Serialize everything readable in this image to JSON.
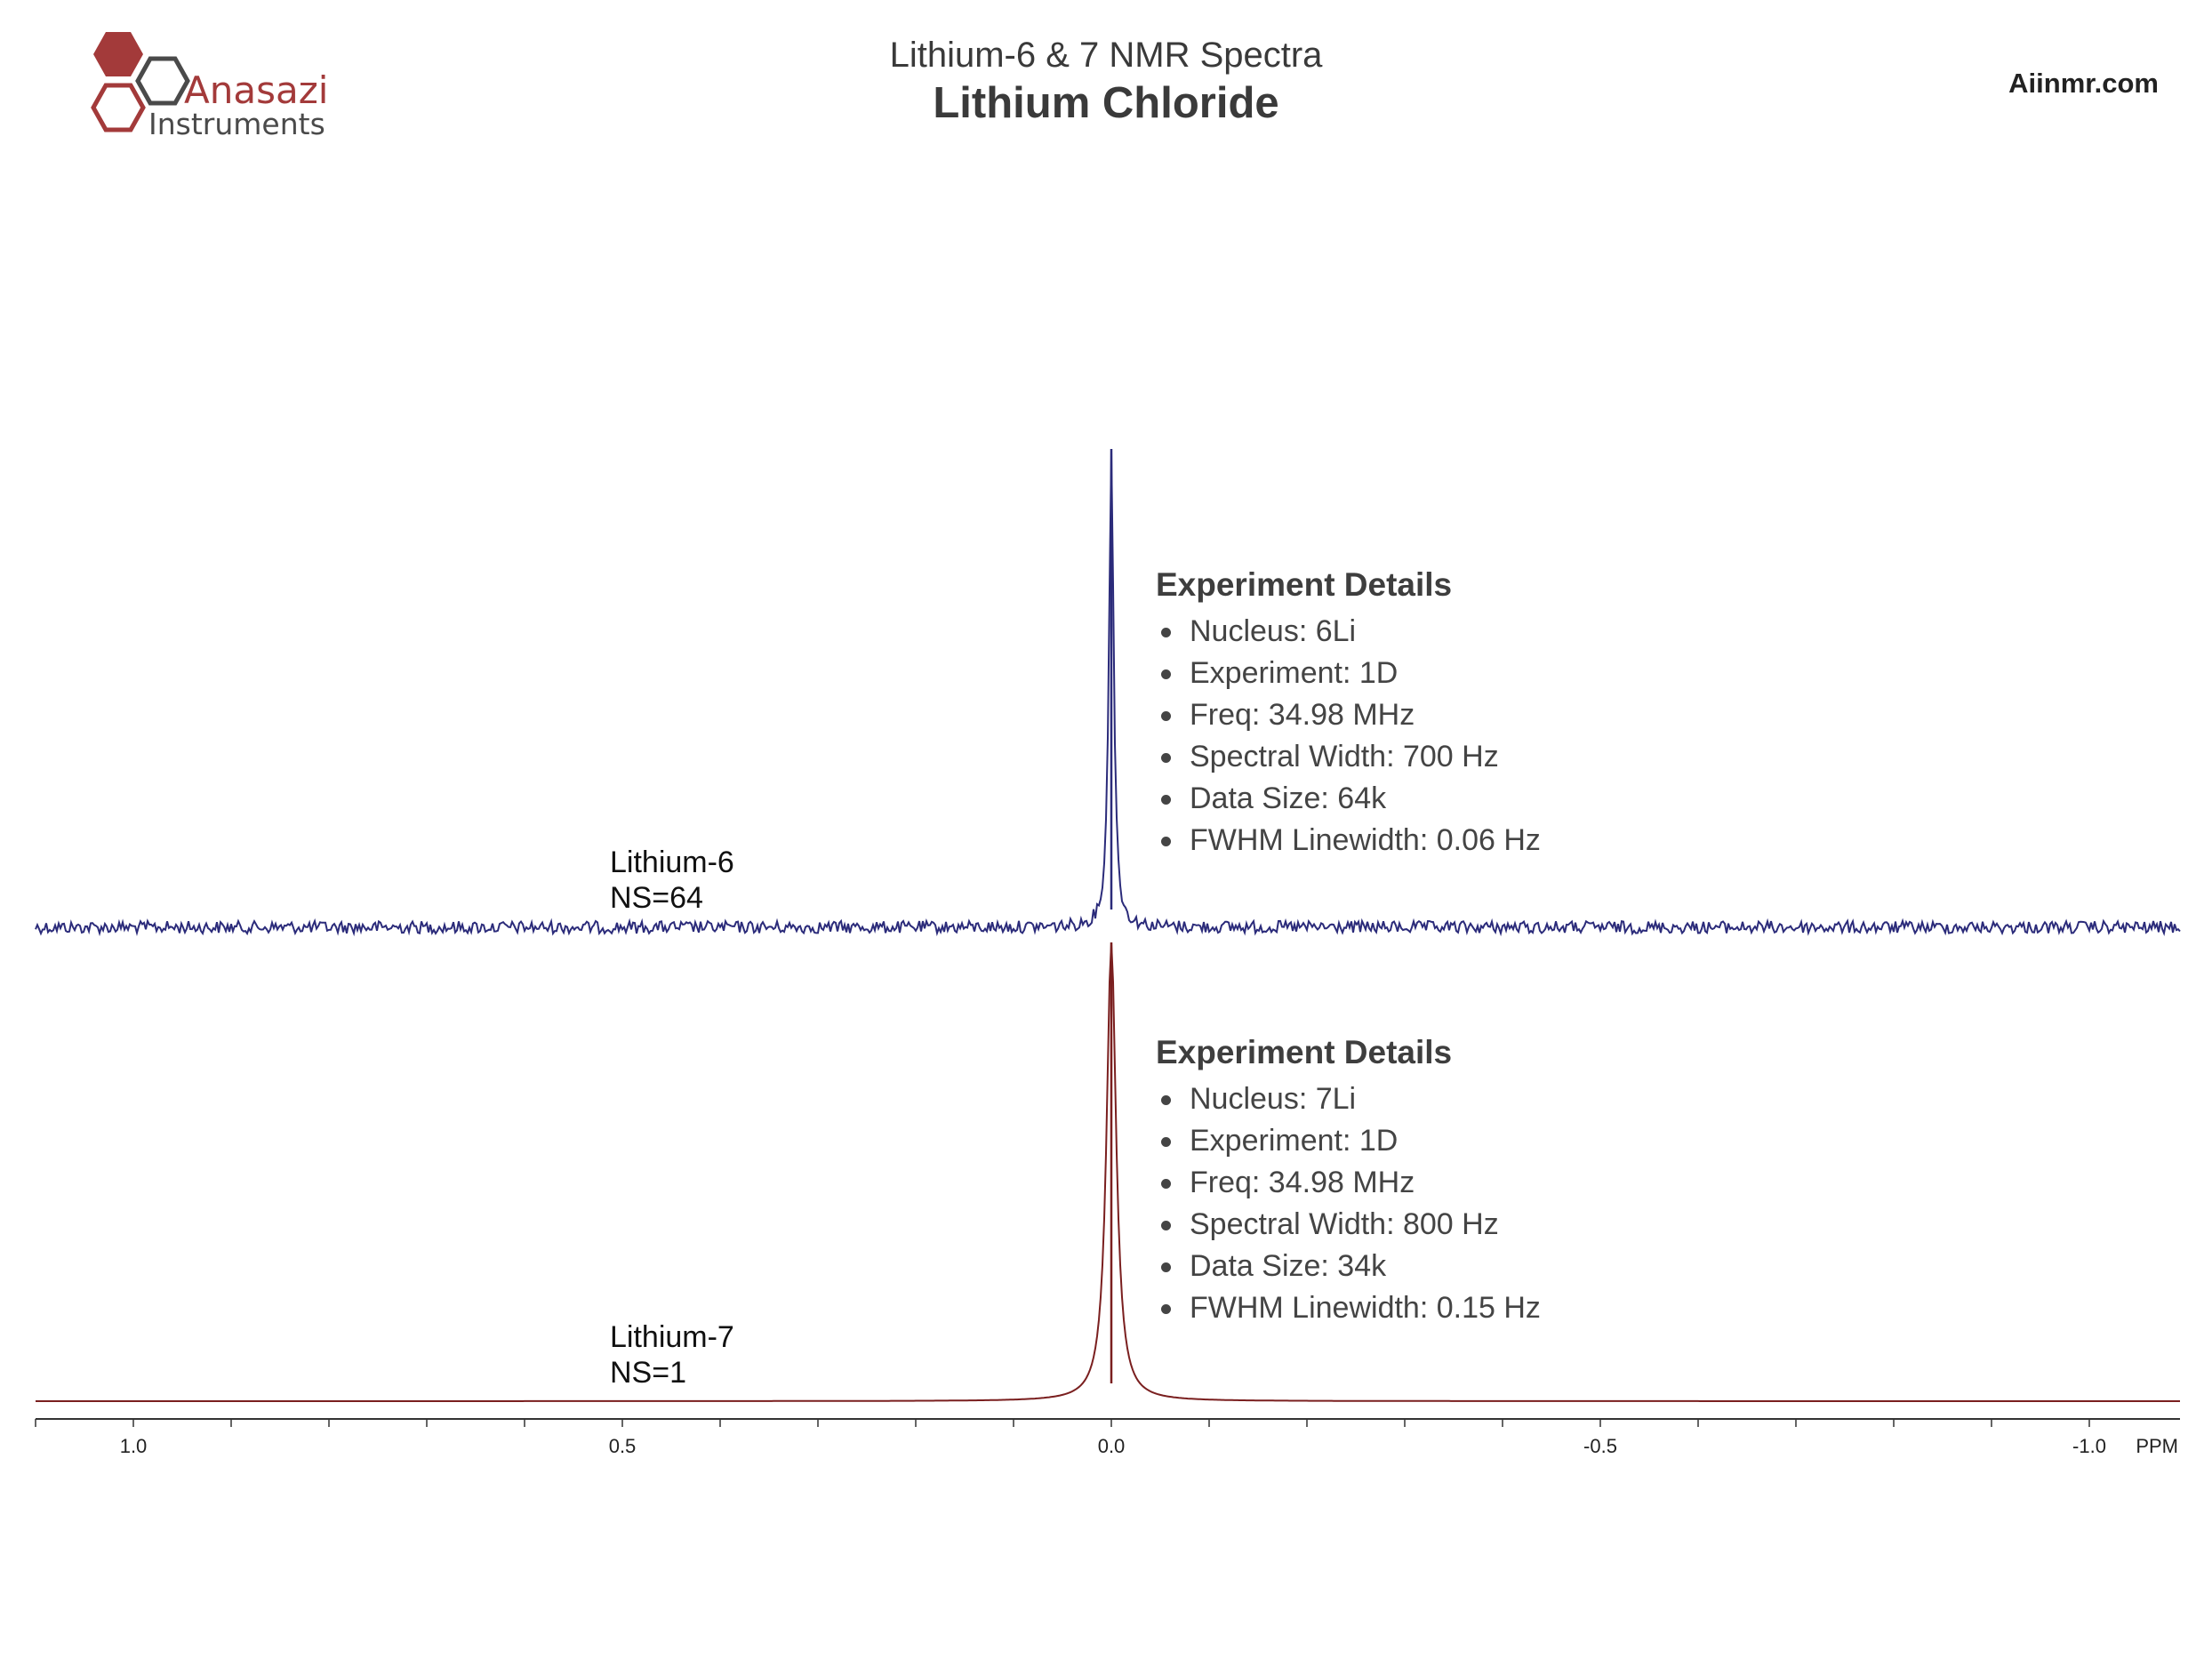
{
  "header": {
    "subtitle": "Lithium-6 & 7 NMR Spectra",
    "title": "Lithium Chloride",
    "website": "Aiinmr.com",
    "logo_text_line1": "Anasazi",
    "logo_text_line2": "Instruments"
  },
  "colors": {
    "logo_red": "#a33a3a",
    "logo_gray": "#4a4a4a",
    "lithium6_trace": "#2b2b7a",
    "lithium7_trace": "#7a1f1f",
    "axis": "#333333"
  },
  "spectra": [
    {
      "label": "Lithium-6",
      "scans": "NS=64",
      "details_title": "Experiment Details",
      "details": [
        "Nucleus: 6Li",
        "Experiment: 1D",
        "Freq: 34.98 MHz",
        "Spectral Width: 700 Hz",
        "Data Size: 64k",
        "FWHM Linewidth: 0.06 Hz"
      ]
    },
    {
      "label": "Lithium-7",
      "scans": "NS=1",
      "details_title": "Experiment Details",
      "details": [
        "Nucleus: 7Li",
        "Experiment: 1D",
        "Freq: 34.98 MHz",
        "Spectral Width: 800 Hz",
        "Data Size: 34k",
        "FWHM Linewidth: 0.15 Hz"
      ]
    }
  ],
  "chart_data": {
    "type": "line",
    "title": "Lithium Chloride",
    "subtitle": "Lithium-6 & 7 NMR Spectra",
    "xlabel": "PPM",
    "xlim": [
      1.1,
      -1.1
    ],
    "x_reversed": true,
    "xticks_major": [
      1.0,
      0.5,
      0.0,
      -0.5,
      -1.0
    ],
    "xtick_labels": [
      "1.0",
      "0.5",
      "0.0",
      "-0.5",
      "-1.0"
    ],
    "xticks_minor_step": 0.1,
    "grid": false,
    "series": [
      {
        "name": "Lithium-6",
        "peak_ppm": 0.0,
        "relative_height": 1.0,
        "baseline_noise": true,
        "stacked_position": "top"
      },
      {
        "name": "Lithium-7",
        "peak_ppm": 0.0,
        "relative_height": 1.0,
        "baseline_noise": false,
        "stacked_position": "bottom"
      }
    ]
  }
}
